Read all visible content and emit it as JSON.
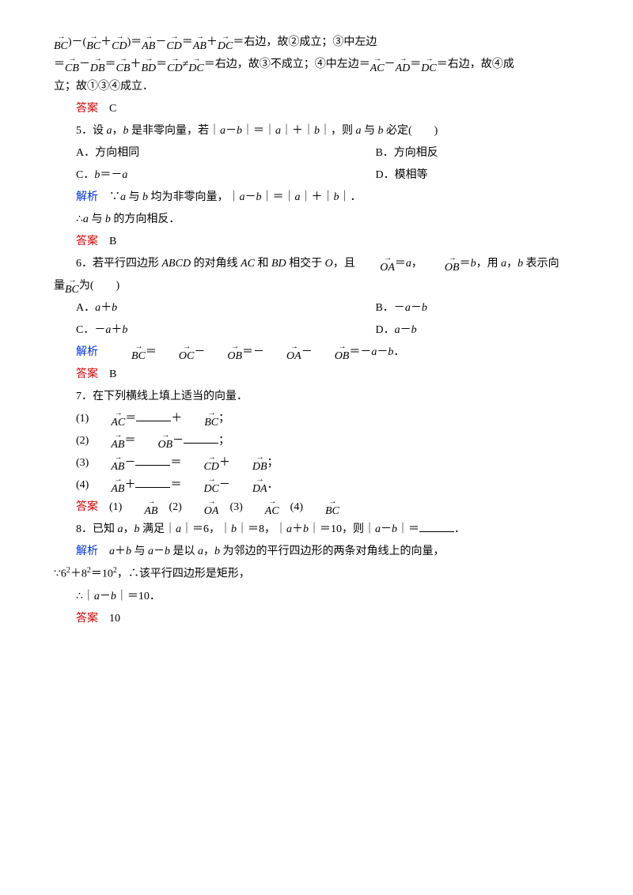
{
  "text_color": "#000000",
  "red_color": "#cc0000",
  "blue_color": "#0033cc",
  "font_family": "SimSun, Times New Roman, serif",
  "font_size_pt": 10.5,
  "line1_suffix": "＝右边，故②成立；③中左边",
  "line2_mid": "＝右边，故③不成立；④中左边＝",
  "line2_end": "＝右边，故④成",
  "line3": "立；故①③④成立．",
  "answer_label": "答案",
  "analysis_label": "解析",
  "q4_answer": "C",
  "q5": {
    "num": "5．",
    "stem_a": "设 ",
    "stem_b": "，",
    "stem_c": " 是非零向量，若｜",
    "stem_d": "－",
    "stem_e": "｜＝｜",
    "stem_f": "｜＋｜",
    "stem_g": "｜，则 ",
    "stem_h": " 与 ",
    "stem_i": " 必定(　　)",
    "optA": "A．方向相同",
    "optB": "B．方向相反",
    "optC_pre": "C．",
    "optC_mid": "＝－",
    "optD": "D．模相等",
    "ana_a": "∵",
    "ana_b": " 与 ",
    "ana_c": " 均为非零向量，｜",
    "ana_d": "－",
    "ana_e": "｜＝｜",
    "ana_f": "｜＋｜",
    "ana_g": "｜．",
    "conc_a": "∴",
    "conc_b": " 与 ",
    "conc_c": " 的方向相反．",
    "answer": "B"
  },
  "q6": {
    "num": "6．",
    "stem_a": "若平行四边形 ",
    "ABCD": "ABCD",
    "stem_b": " 的对角线 ",
    "AC": "AC",
    "stem_c": " 和 ",
    "BD": "BD",
    "stem_d": " 相交于 ",
    "O": "O",
    "stem_e": "，且 ",
    "eq1": "＝",
    "comma": "，",
    "eq2": "＝",
    "stem_f": "，用 ",
    "stem_g": "，",
    "stem_h": " 表示向",
    "line2_a": "量",
    "line2_b": "为(　　)",
    "optA_pre": "A．",
    "optA_mid": "＋",
    "optB_pre": "B．－",
    "optB_mid": "－",
    "optC_pre": "C．－",
    "optC_mid": "＋",
    "optD_pre": "D．",
    "optD_mid": "－",
    "ana_eq": "＝",
    "ana_minus": "－",
    "ana_neg": "＝－",
    "ana_end": "．",
    "answer": "B"
  },
  "q7": {
    "num": "7．",
    "stem": "在下列横线上填上适当的向量．",
    "p1": "(1)",
    "p2": "(2)",
    "p3": "(3)",
    "p4": "(4)",
    "eq": "＝",
    "plus": "＋",
    "minus": "－",
    "semi": "；",
    "period": "．",
    "ans1": "(1)",
    "ans2": "(2)",
    "ans3": "(3)",
    "ans4": "(4)"
  },
  "q8": {
    "num": "8．",
    "stem_a": "已知 ",
    "stem_b": "，",
    "stem_c": " 满足｜",
    "stem_d": "｜＝6，｜",
    "stem_e": "｜＝8，｜",
    "stem_f": "＋",
    "stem_g": "｜＝10，则｜",
    "stem_h": "－",
    "stem_i": "｜＝",
    "stem_j": "．",
    "ana_a": "＋",
    "ana_b": " 与 ",
    "ana_c": "－",
    "ana_d": " 是以 ",
    "ana_e": "，",
    "ana_f": " 为邻边的平行四边形的两条对角线上的向量，",
    "line_a": "∵6",
    "line_b": "＋8",
    "line_c": "＝10",
    "line_d": "，∴该平行四边形是矩形，",
    "sq": "2",
    "conc_a": "∴｜",
    "conc_b": "－",
    "conc_c": "｜＝10．",
    "answer": "10"
  },
  "vec": {
    "BC": "BC",
    "CD": "CD",
    "AB": "AB",
    "DC": "DC",
    "CB": "CB",
    "DB": "DB",
    "BD": "BD",
    "AC": "AC",
    "AD": "AD",
    "OA": "OA",
    "OB": "OB",
    "OC": "OC",
    "DA": "DA"
  },
  "var": {
    "a": "a",
    "b": "b"
  },
  "arrow": "→"
}
